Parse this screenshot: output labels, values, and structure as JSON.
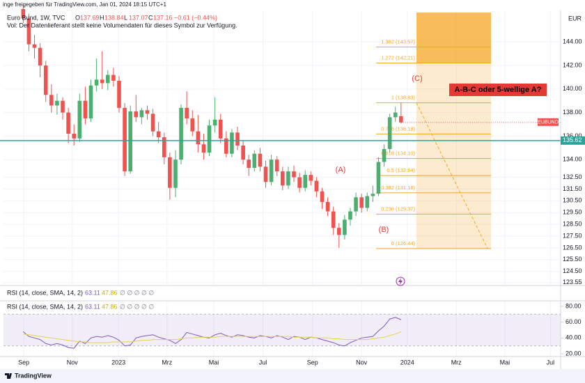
{
  "header": {
    "shared_by": "inge freigegeben für TradingView.com, Jan 01, 2024 18:15 UTC+1",
    "symbol": "Euro Bund, 1W, TVC",
    "ohlc_labels": [
      "O",
      "H",
      "L",
      "C"
    ],
    "change": "−0.61 (−0.44%)",
    "volume_note": "Vol: Der Datenlieferant stellt keine Volumendaten für dieses Symbol zur Verfügung."
  },
  "chart_data": [
    {
      "type": "candlestick",
      "currency": "EUR",
      "up_color": "#4caf70",
      "down_color": "#ef5350",
      "grid": true,
      "candles": [
        [
          146.8,
          147.2,
          145.6,
          146.0
        ],
        [
          146.0,
          146.4,
          143.2,
          143.8
        ],
        [
          143.8,
          144.6,
          142.6,
          143.5
        ],
        [
          143.5,
          143.9,
          141.0,
          142.0
        ],
        [
          142.0,
          142.4,
          138.9,
          139.5
        ],
        [
          139.5,
          140.4,
          138.0,
          138.6
        ],
        [
          138.6,
          139.6,
          137.8,
          139.0
        ],
        [
          139.0,
          139.3,
          137.4,
          138.0
        ],
        [
          138.0,
          138.4,
          135.4,
          136.2
        ],
        [
          136.2,
          137.0,
          135.2,
          135.8
        ],
        [
          135.8,
          139.6,
          135.5,
          139.0
        ],
        [
          139.0,
          140.2,
          137.0,
          137.5
        ],
        [
          137.5,
          140.8,
          137.2,
          140.3
        ],
        [
          140.3,
          142.6,
          139.8,
          140.8
        ],
        [
          140.8,
          143.2,
          140.0,
          140.5
        ],
        [
          140.5,
          141.6,
          139.9,
          141.2
        ],
        [
          141.2,
          141.8,
          140.2,
          140.7
        ],
        [
          140.7,
          141.1,
          138.0,
          138.4
        ],
        [
          138.4,
          138.8,
          132.6,
          133.0
        ],
        [
          133.0,
          138.6,
          132.8,
          138.1
        ],
        [
          138.1,
          139.5,
          137.2,
          137.6
        ],
        [
          137.6,
          138.4,
          137.0,
          138.2
        ],
        [
          138.2,
          138.6,
          137.4,
          137.9
        ],
        [
          137.9,
          138.3,
          136.0,
          136.4
        ],
        [
          136.4,
          137.2,
          135.4,
          135.9
        ],
        [
          135.9,
          136.3,
          133.6,
          134.2
        ],
        [
          134.2,
          134.6,
          130.6,
          131.6
        ],
        [
          131.6,
          134.8,
          130.8,
          134.0
        ],
        [
          134.0,
          138.7,
          133.6,
          138.4
        ],
        [
          138.4,
          139.8,
          137.0,
          137.5
        ],
        [
          137.5,
          138.2,
          136.0,
          136.4
        ],
        [
          136.4,
          137.8,
          134.6,
          135.3
        ],
        [
          135.3,
          136.2,
          134.0,
          134.6
        ],
        [
          134.6,
          137.4,
          134.3,
          136.9
        ],
        [
          136.9,
          139.3,
          136.3,
          137.4
        ],
        [
          137.4,
          137.9,
          135.4,
          135.8
        ],
        [
          135.8,
          136.4,
          134.2,
          134.5
        ],
        [
          134.5,
          136.6,
          134.2,
          136.3
        ],
        [
          136.3,
          136.8,
          134.8,
          135.2
        ],
        [
          135.2,
          135.6,
          133.6,
          134.0
        ],
        [
          134.0,
          134.4,
          132.6,
          133.3
        ],
        [
          133.3,
          134.8,
          133.0,
          134.5
        ],
        [
          134.5,
          135.0,
          133.0,
          133.4
        ],
        [
          133.4,
          133.9,
          131.6,
          132.1
        ],
        [
          132.1,
          134.4,
          131.8,
          134.0
        ],
        [
          134.0,
          134.3,
          132.6,
          133.0
        ],
        [
          133.0,
          133.4,
          131.4,
          131.8
        ],
        [
          131.8,
          133.4,
          131.5,
          133.0
        ],
        [
          133.0,
          133.5,
          132.1,
          132.5
        ],
        [
          132.5,
          132.9,
          131.2,
          131.6
        ],
        [
          131.6,
          133.1,
          131.3,
          132.7
        ],
        [
          132.7,
          133.0,
          131.8,
          132.2
        ],
        [
          132.2,
          132.5,
          130.8,
          131.3
        ],
        [
          131.3,
          131.6,
          129.8,
          130.4
        ],
        [
          130.4,
          130.8,
          129.2,
          129.6
        ],
        [
          129.6,
          130.0,
          127.6,
          128.2
        ],
        [
          128.2,
          128.6,
          126.5,
          127.6
        ],
        [
          127.6,
          129.3,
          127.2,
          128.9
        ],
        [
          128.9,
          129.9,
          128.4,
          129.6
        ],
        [
          129.6,
          131.2,
          129.2,
          130.8
        ],
        [
          130.8,
          131.1,
          129.5,
          129.9
        ],
        [
          129.9,
          131.2,
          129.6,
          130.9
        ],
        [
          130.9,
          131.8,
          130.4,
          131.1
        ],
        [
          131.1,
          134.2,
          130.9,
          133.8
        ],
        [
          133.8,
          135.3,
          133.4,
          134.9
        ],
        [
          134.9,
          137.9,
          134.6,
          137.6
        ],
        [
          137.6,
          138.5,
          137.2,
          138.0
        ],
        [
          137.69,
          138.84,
          137.07,
          137.16
        ]
      ],
      "xlim": [
        -3.5,
        95.3
      ],
      "xticks": [
        {
          "value": 0.1,
          "label": "Sep"
        },
        {
          "value": 8.7,
          "label": "Nov"
        },
        {
          "value": 16.9,
          "label": "2023"
        },
        {
          "value": 25.5,
          "label": "Mrz"
        },
        {
          "value": 33.8,
          "label": "Mai"
        },
        {
          "value": 42.5,
          "label": "Jul"
        },
        {
          "value": 51.3,
          "label": "Sep"
        },
        {
          "value": 60,
          "label": "Nov"
        },
        {
          "value": 68.1,
          "label": "2024"
        },
        {
          "value": 76.8,
          "label": "Mrz"
        },
        {
          "value": 85.4,
          "label": "Mai"
        },
        {
          "value": 93.5,
          "label": "Jul"
        }
      ],
      "ylim": [
        123.3,
        146.5
      ],
      "yticks": [
        {
          "value": 144,
          "label": "144.00"
        },
        {
          "value": 142,
          "label": "142.00"
        },
        {
          "value": 140,
          "label": "140.00"
        },
        {
          "value": 138,
          "label": "138.00"
        },
        {
          "value": 136,
          "label": "136.00"
        },
        {
          "value": 134,
          "label": "134.00"
        },
        {
          "value": 132.5,
          "label": "132.50"
        },
        {
          "value": 131.5,
          "label": "131.50"
        },
        {
          "value": 130.5,
          "label": "130.50"
        },
        {
          "value": 129.5,
          "label": "129.50"
        },
        {
          "value": 128.5,
          "label": "128.50"
        },
        {
          "value": 127.5,
          "label": "127.50"
        },
        {
          "value": 126.5,
          "label": "126.50"
        },
        {
          "value": 125.5,
          "label": "125.50"
        },
        {
          "value": 124.5,
          "label": "124.50"
        },
        123.55
      ],
      "hline": {
        "value": 135.62,
        "color": "#26a69a"
      },
      "symbol_tag": "EUBUND",
      "fib_color": "#f5a623",
      "fib": [
        {
          "label": "1.382 (143.57)",
          "price": 143.57
        },
        {
          "label": "1.272 (142.21)",
          "price": 142.21
        },
        {
          "label": "1 (138.83)",
          "price": 138.83
        },
        {
          "label": "0.786 (136.18)",
          "price": 136.18
        },
        {
          "label": "0.618 (134.10)",
          "price": 134.1
        },
        {
          "label": "0.5 (132.64)",
          "price": 132.64
        },
        {
          "label": "0.382 (131.18)",
          "price": 131.18
        },
        {
          "label": "0.236 (129.37)",
          "price": 129.37
        },
        {
          "label": "0 (126.44)",
          "price": 126.44
        }
      ],
      "annotations": [
        "(A)",
        "(B)",
        "(C)"
      ],
      "callout": "A-B-C oder 5-wellige A?"
    },
    {
      "type": "line",
      "title": "RSI (14, close, SMA, 14, 2)",
      "placeholders": "∅ ∅ ∅ ∅ ∅",
      "ylim": [
        16.5,
        87
      ],
      "yticks": [
        {
          "value": 80,
          "label": "80.00"
        },
        {
          "value": 60,
          "label": "60.00"
        },
        {
          "value": 40,
          "label": "40.00"
        },
        {
          "value": 20,
          "label": "20.00"
        }
      ],
      "band": [
        30,
        70
      ],
      "series": [
        {
          "color": "#7e57c2",
          "values": [
            48,
            42,
            40,
            38,
            33,
            31,
            33,
            31,
            28,
            27,
            36,
            33,
            40,
            42,
            41,
            43,
            41,
            37,
            30,
            31,
            40,
            42,
            43,
            44,
            41,
            39,
            37,
            33,
            38,
            47,
            45,
            43,
            41,
            40,
            44,
            46,
            43,
            41,
            44,
            43,
            41,
            40,
            43,
            42,
            40,
            43,
            41,
            38,
            42,
            41,
            38,
            41,
            40,
            38,
            36,
            34,
            31,
            30,
            34,
            37,
            40,
            41,
            42,
            49,
            55,
            64,
            66,
            63.11
          ]
        },
        {
          "color": "#e6d34a",
          "values": [
            45,
            44,
            43,
            42,
            41,
            40,
            39,
            38,
            37,
            36,
            35,
            35,
            34,
            34,
            34,
            34,
            35,
            35,
            35,
            35,
            36,
            37,
            37,
            38,
            38,
            38,
            38,
            38,
            39,
            40,
            40,
            41,
            41,
            41,
            41,
            42,
            42,
            42,
            42,
            42,
            42,
            42,
            42,
            42,
            42,
            42,
            42,
            42,
            41,
            41,
            41,
            41,
            40,
            40,
            40,
            39,
            39,
            38,
            38,
            38,
            38,
            38,
            39,
            40,
            41,
            43,
            45,
            47.86
          ]
        }
      ]
    }
  ],
  "footer": {
    "brand": "TradingView"
  }
}
